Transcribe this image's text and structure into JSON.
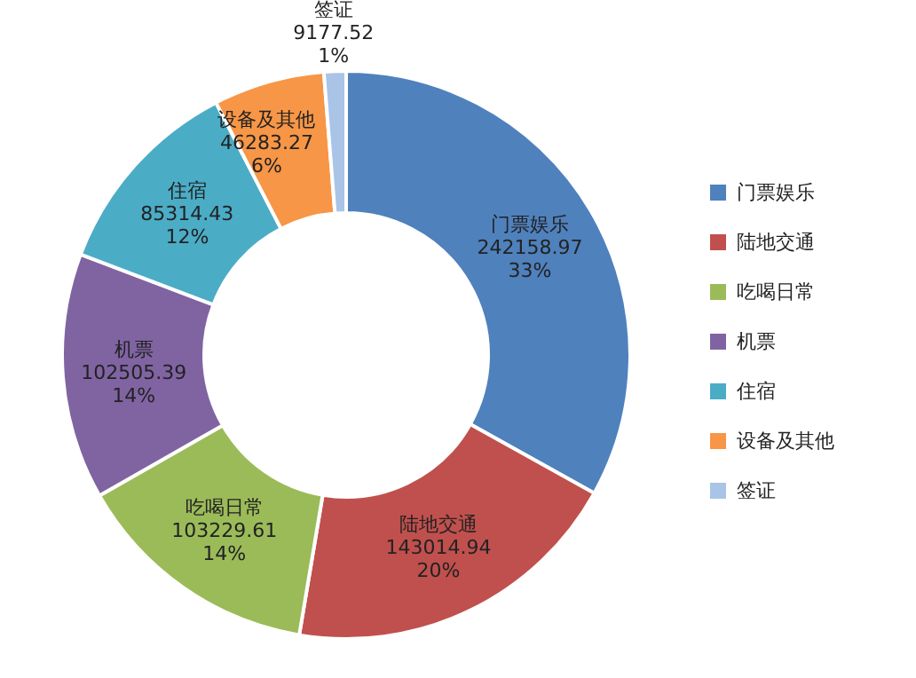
{
  "chart_data": {
    "type": "donut",
    "categories": [
      "门票娱乐",
      "陆地交通",
      "吃喝日常",
      "机票",
      "住宿",
      "设备及其他",
      "签证"
    ],
    "values": [
      242158.97,
      143014.94,
      103229.61,
      102505.39,
      85314.43,
      46283.27,
      9177.52
    ],
    "value_labels": [
      "242158.97\n33%",
      "143014.94\n20%",
      "103229.61\n14%",
      "102505.39\n14%",
      "85314.43\n12%",
      "46283.27\n6%",
      "9177.52\n1%"
    ],
    "colors": [
      "#4f81bd",
      "#c0504d",
      "#9bbb59",
      "#8064a2",
      "#4bacc6",
      "#f79646",
      "#a9c4e6"
    ],
    "legend": "right"
  }
}
